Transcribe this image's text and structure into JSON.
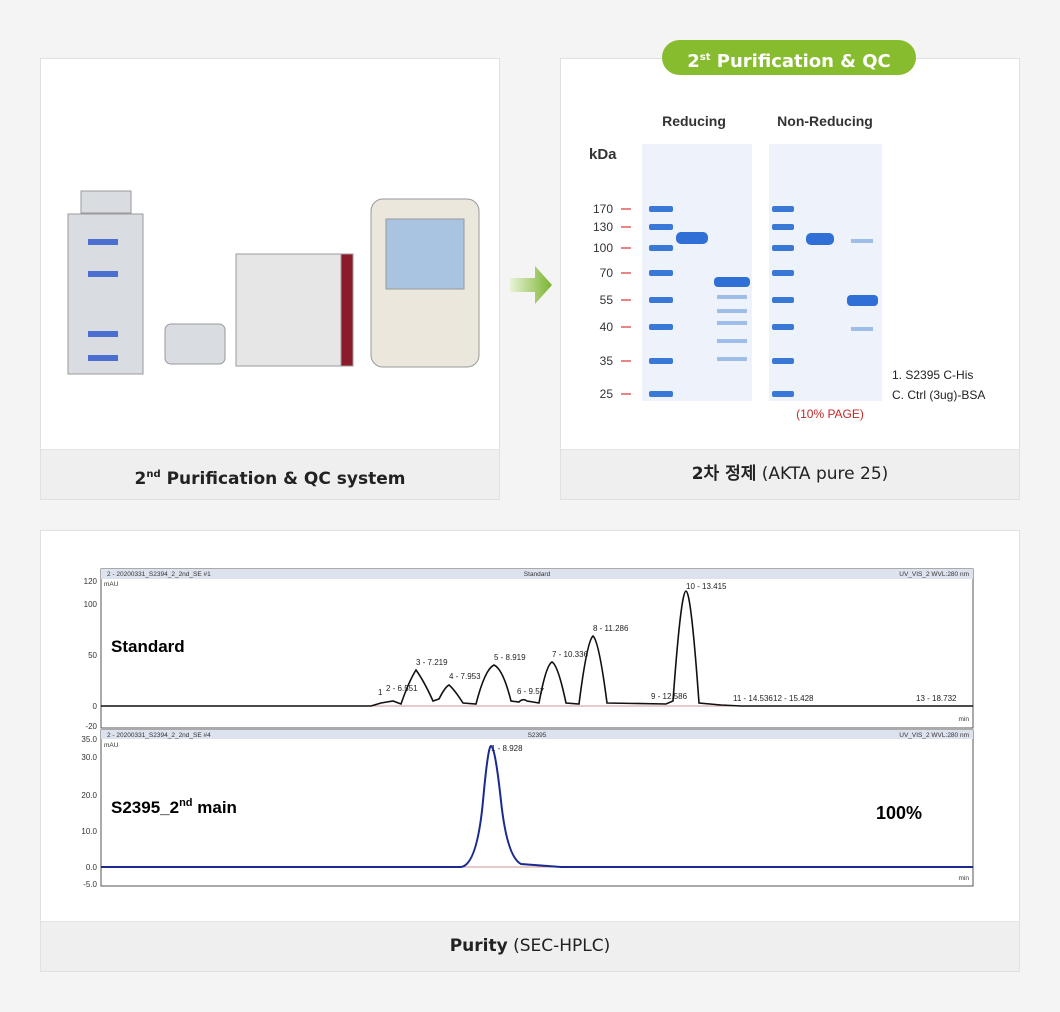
{
  "panels": [
    {
      "caption": {
        "prefix": "2",
        "sup": "nd",
        "text": " Purification & QC system"
      }
    },
    {
      "badge": {
        "prefix": "2",
        "sup": "st",
        "text": " Purification & QC"
      },
      "caption": {
        "bold": "2차 정제",
        "text": " (AKTA pure 25)"
      },
      "gel": {
        "groups": [
          "Reducing",
          "Non-Reducing"
        ],
        "unit": "kDa",
        "markers": [
          "170",
          "130",
          "100",
          "70",
          "55",
          "40",
          "35",
          "25"
        ],
        "note": "(10% PAGE)",
        "legend": [
          "1. S2395 C-His",
          "C. Ctrl (3ug)-BSA"
        ]
      }
    }
  ],
  "purity": {
    "caption": {
      "bold": "Purity",
      "text": " (SEC-HPLC)"
    },
    "top": {
      "header": [
        "2 - 20200331_S2394_2_2nd_SE #1",
        "Standard",
        "UV_VIS_2 WVL:280 nm"
      ],
      "unit": "mAU",
      "xunit": "min",
      "yticks": [
        "120",
        "100",
        "50",
        "0",
        "-20"
      ],
      "label": "Standard",
      "peaks": [
        "1",
        "2 - 6.551",
        "3 - 7.219",
        "4 - 7.953",
        "5 - 8.919",
        "6 - 9.57",
        "7 - 10.336",
        "8 - 11.286",
        "9 - 12.586",
        "10 - 13.415",
        "11 - 14.536",
        "12 - 15.428",
        "13 - 18.732"
      ]
    },
    "bottom": {
      "header": [
        "2 - 20200331_S2394_2_2nd_SE #4",
        "S2395",
        "UV_VIS_2 WVL:280 nm"
      ],
      "unit": "mAU",
      "xunit": "min",
      "yticks": [
        "35.0",
        "30.0",
        "20.0",
        "10.0",
        "0.0",
        "-5.0"
      ],
      "label": {
        "prefix": "S2395_2",
        "sup": "nd",
        "text": " main"
      },
      "result": "100%",
      "peaks": [
        "1 - 8.928"
      ]
    }
  }
}
